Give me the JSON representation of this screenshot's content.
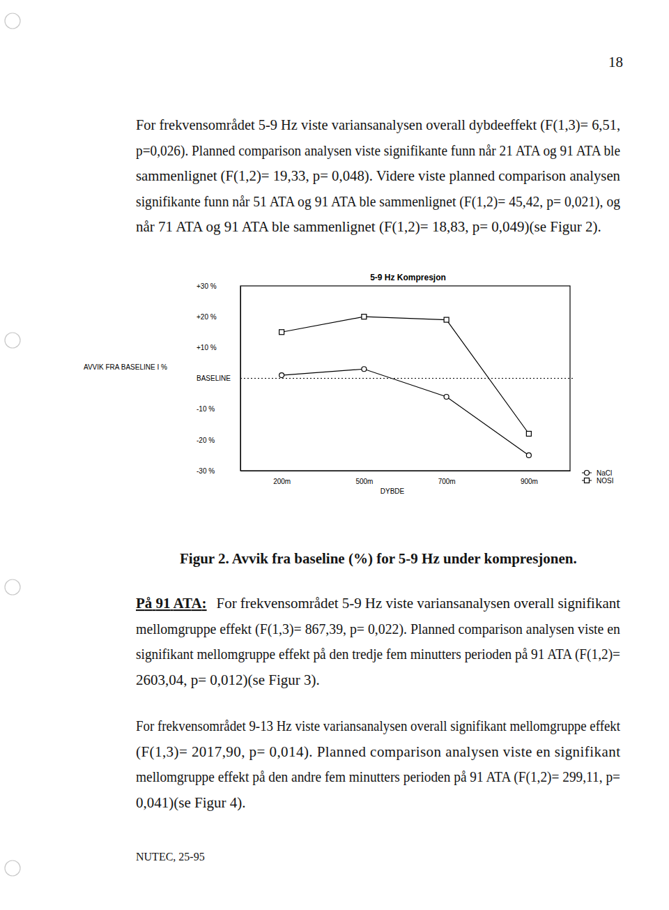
{
  "document": {
    "page_number": "18",
    "paragraphs": [
      {
        "lines": [
          "For frekvensområdet 5-9 Hz viste variansanalysen overall dybdeeffekt (F(1,3)= 6,51,",
          "p=0,026). Planned comparison analysen viste signifikante funn når 21 ATA og 91 ATA ble",
          "sammenlignet (F(1,2)= 19,33, p= 0,048). Videre viste planned comparison analysen",
          "signifikante funn når 51 ATA og 91 ATA ble sammenlignet (F(1,2)= 45,42, p= 0,021), og",
          "når 71 ATA og 91 ATA ble sammenlignet (F(1,2)= 18,83, p= 0,049)(se Figur 2)."
        ]
      },
      {
        "heading": "På 91 ATA:",
        "lines": [
          "For frekvensområdet 5-9 Hz viste variansanalysen overall signifikant",
          "mellomgruppe effekt (F(1,3)= 867,39, p= 0,022). Planned comparison analysen viste en",
          "signifikant mellomgruppe effekt på den tredje fem minutters perioden på 91 ATA (F(1,2)=",
          "2603,04, p= 0,012)(se Figur 3)."
        ]
      },
      {
        "lines": [
          "For frekvensområdet 9-13 Hz viste variansanalysen overall signifikant mellomgruppe effekt",
          "(F(1,3)= 2017,90, p= 0,014). Planned comparison analysen viste en signifikant",
          "mellomgruppe effekt på den andre fem minutters perioden på 91 ATA (F(1,2)= 299,11, p=",
          "0,041)(se Figur 4)."
        ]
      }
    ],
    "caption": "Figur 2. Avvik fra baseline (%) for 5-9 Hz under kompresjonen.",
    "footer": "NUTEC, 25-95"
  },
  "chart_data": {
    "type": "line",
    "title": "5-9 Hz Kompresjon",
    "x_label": "DYBDE",
    "y_label": "AVVIK FRA BASELINE I %",
    "categories": [
      "200m",
      "500m",
      "700m",
      "900m"
    ],
    "series": [
      {
        "name": "NaCl",
        "color": "#000000",
        "marker": "circle",
        "values": [
          1,
          3,
          -6,
          -25
        ]
      },
      {
        "name": "NOSI",
        "color": "#000000",
        "marker": "square",
        "values": [
          15,
          20,
          19,
          -18
        ]
      }
    ],
    "ylim": [
      -30,
      30
    ],
    "yticks": [
      {
        "value": -30,
        "label": "-30 %"
      },
      {
        "value": -20,
        "label": "-20 %"
      },
      {
        "value": -10,
        "label": "-10 %"
      },
      {
        "value": 0,
        "label": "BASELINE"
      },
      {
        "value": 10,
        "label": "+10 %"
      },
      {
        "value": 20,
        "label": "+20 %"
      },
      {
        "value": 30,
        "label": "+30 %"
      }
    ],
    "legend": "lower right"
  }
}
